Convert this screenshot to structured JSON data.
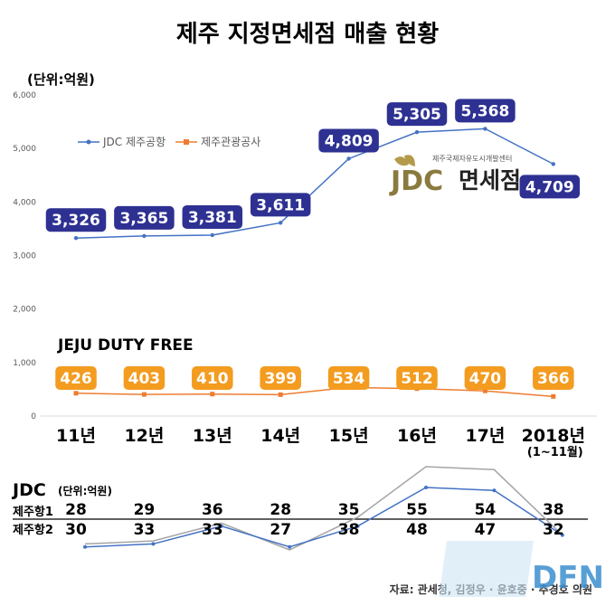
{
  "title": "제주 지정면세점 매출 현황",
  "unit": "(단위:억원)",
  "chart_data": [
    {
      "type": "line",
      "title": "제주 지정면세점 매출 현황",
      "unit": "(단위:억원)",
      "categories": [
        "11년",
        "12년",
        "13년",
        "14년",
        "15년",
        "16년",
        "17년",
        "2018년"
      ],
      "category_sub": [
        "",
        "",
        "",
        "",
        "",
        "",
        "",
        "(1~11월)"
      ],
      "ylim": [
        0,
        6000
      ],
      "yticks": [
        "0",
        "1,000",
        "2,000",
        "3,000",
        "4,000",
        "5,000",
        "6,000"
      ],
      "legend_position": "top-left",
      "series": [
        {
          "name": "JDC 제주공항",
          "color": "#4472c4",
          "label_color": "#2e3192",
          "values": [
            3326,
            3365,
            3381,
            3611,
            4809,
            5305,
            5368,
            4709
          ],
          "labels": [
            "3,326",
            "3,365",
            "3,381",
            "3,611",
            "4,809",
            "5,305",
            "5,368",
            "4,709"
          ]
        },
        {
          "name": "제주관광공사",
          "color": "#ed7d31",
          "label_color": "#f39c1f",
          "values": [
            426,
            403,
            410,
            399,
            534,
            512,
            470,
            366
          ],
          "labels": [
            "426",
            "403",
            "410",
            "399",
            "534",
            "512",
            "470",
            "366"
          ]
        }
      ]
    },
    {
      "type": "line",
      "title": "JDC",
      "unit": "(단위:억원)",
      "categories": [
        "11년",
        "12년",
        "13년",
        "14년",
        "15년",
        "16년",
        "17년",
        "2018년"
      ],
      "series": [
        {
          "name": "제주항1",
          "color": "#4472c4",
          "values": [
            28,
            29,
            36,
            28,
            35,
            55,
            54,
            38
          ]
        },
        {
          "name": "제주항2",
          "color": "#a5a5a5",
          "values": [
            30,
            33,
            33,
            27,
            38,
            48,
            47,
            32
          ]
        }
      ]
    }
  ],
  "brand": {
    "jdc_small": "제주국제자유도시개발센터",
    "jdc_logo": "JDC 면세점",
    "jeju_logo": "JEJU DUTY FREE"
  },
  "source": "자료:  관세청,  김정우 · 윤호중 · 추경호 의원",
  "watermark": "DFN"
}
